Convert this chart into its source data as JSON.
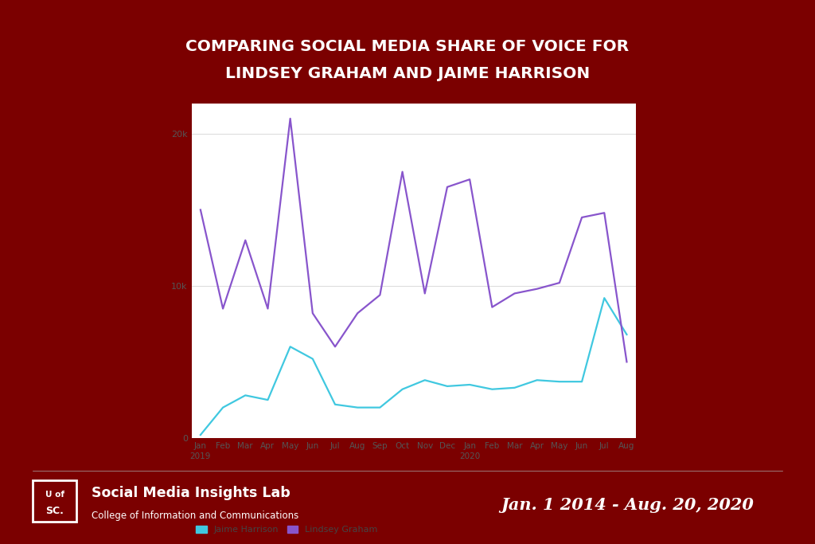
{
  "title_line1": "COMPARING SOCIAL MEDIA SHARE OF VOICE FOR",
  "title_line2": "LINDSEY GRAHAM AND JAIME HARRISON",
  "background_color": "#7B0000",
  "chart_bg": "#FFFFFF",
  "title_color": "#FFFFFF",
  "footer_text1": "Social Media Insights Lab",
  "footer_text2": "College of Information and Communications",
  "footer_date": "Jan. 1 2014 - Aug. 20, 2020",
  "harrison_color": "#40C8E0",
  "graham_color": "#8855CC",
  "x_labels_short": [
    "Jan",
    "Feb",
    "Mar",
    "Apr",
    "May",
    "Jun",
    "Jul",
    "Aug",
    "Sep",
    "Oct",
    "Nov",
    "Dec",
    "Jan",
    "Feb",
    "Mar",
    "Apr",
    "May",
    "Jun",
    "Jul",
    "Aug"
  ],
  "harrison_data": [
    200,
    2000,
    2800,
    2500,
    6000,
    5200,
    2200,
    2000,
    2000,
    3200,
    3800,
    3400,
    3500,
    3200,
    3300,
    3800,
    3700,
    3700,
    9200,
    6800
  ],
  "graham_data": [
    15000,
    8500,
    13000,
    8500,
    21000,
    8200,
    6000,
    8200,
    9400,
    17500,
    9500,
    16500,
    17000,
    8600,
    9500,
    9800,
    10200,
    14500,
    14800,
    5000
  ],
  "ylim": [
    0,
    22000
  ],
  "yticks": [
    0,
    10000,
    20000
  ],
  "ytick_labels": [
    "0",
    "10k",
    "20k"
  ]
}
